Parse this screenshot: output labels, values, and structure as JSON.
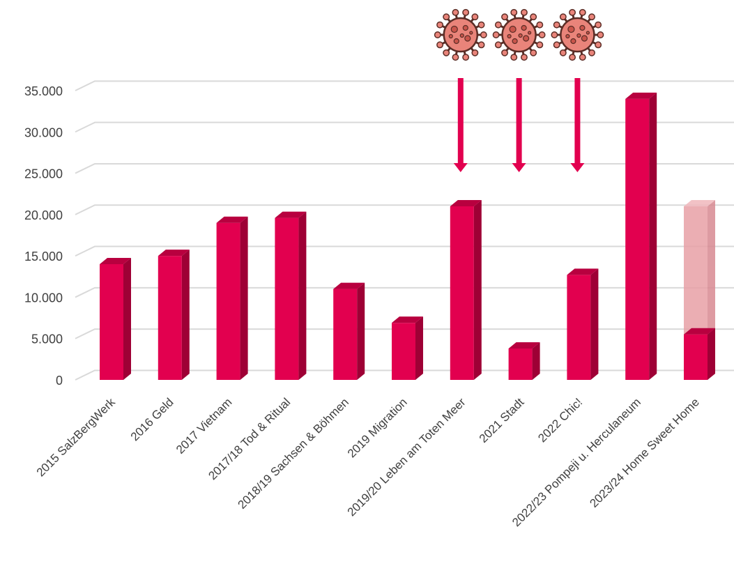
{
  "chart_data": {
    "type": "bar",
    "title": "",
    "xlabel": "",
    "ylabel": "",
    "ylim": [
      0,
      35000
    ],
    "yticks": [
      "0",
      "5.000",
      "10.000",
      "15.000",
      "20.000",
      "25.000",
      "30.000",
      "35.000"
    ],
    "grid": true,
    "style": "3d",
    "colors": {
      "bar": "#e2004f",
      "bar_side": "#9e0035",
      "bar_top": "#b8003f",
      "ghost_bar": "#e8a0a6",
      "arrow": "#e2004f",
      "grid": "#d9d9d9"
    },
    "categories": [
      "2015 SalzBergWerk",
      "2016 Geld",
      "2017 Vietnam",
      "2017/18 Tod & Ritual",
      "2018/19 Sachsen & Böhmen",
      "2019 Migration",
      "2019/20 Leben am Toten Meer",
      "2021 Stadt",
      "2022 Chic!",
      "2022/23 Pompeji u. Herculaneum",
      "2023/24 Home Sweet Home"
    ],
    "values": [
      14000,
      15000,
      19000,
      19600,
      11000,
      6900,
      21000,
      3800,
      12700,
      34000,
      5500
    ],
    "projected": [
      null,
      null,
      null,
      null,
      null,
      null,
      null,
      null,
      null,
      null,
      21000
    ],
    "annotations": [
      {
        "category": "2019/20 Leben am Toten Meer",
        "icon": "coronavirus-icon",
        "arrow": "down"
      },
      {
        "category": "2021 Stadt",
        "icon": "coronavirus-icon",
        "arrow": "down"
      },
      {
        "category": "2022 Chic!",
        "icon": "coronavirus-icon",
        "arrow": "down"
      }
    ]
  }
}
